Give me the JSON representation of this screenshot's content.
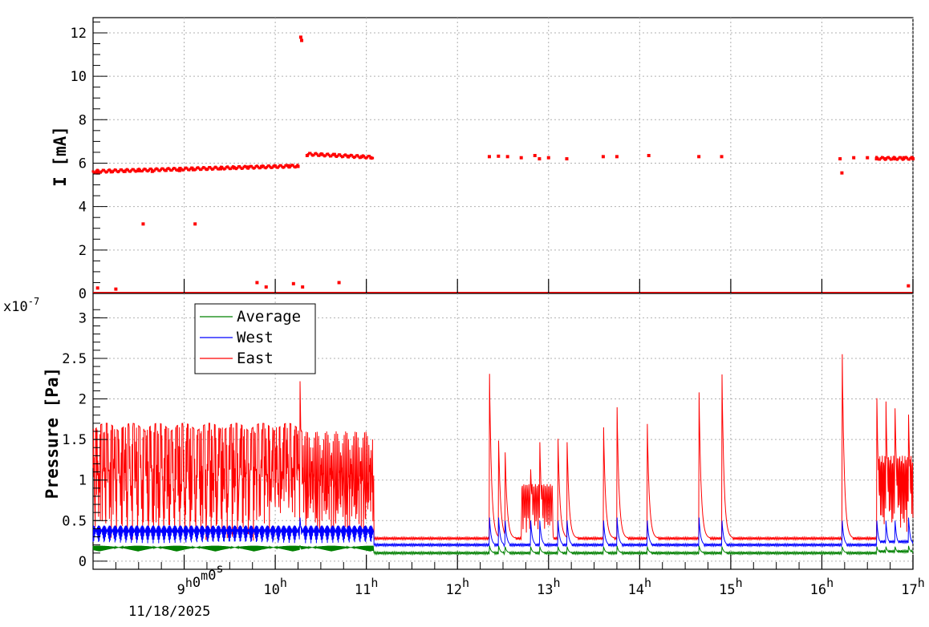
{
  "chart_data": [
    {
      "type": "scatter",
      "title": "",
      "xlabel": "",
      "ylabel": "I [mA]",
      "ylim": [
        0,
        12.7
      ],
      "yticks": [
        0,
        2,
        4,
        6,
        8,
        10,
        12
      ],
      "ytick_labels": [
        "0",
        "2",
        "4",
        "6",
        "8",
        "10",
        "12"
      ],
      "grid": true,
      "x_unit": "hour of day",
      "xlim": [
        8.0,
        17.0
      ],
      "series": [
        {
          "color": "#ff0000",
          "baseline_value": 0,
          "points": [
            [
              8.05,
              5.55
            ],
            [
              8.2,
              5.6
            ],
            [
              8.35,
              5.62
            ],
            [
              8.5,
              5.65
            ],
            [
              8.65,
              5.62
            ],
            [
              8.8,
              5.67
            ],
            [
              8.95,
              5.66
            ],
            [
              9.1,
              5.7
            ],
            [
              9.25,
              5.72
            ],
            [
              9.4,
              5.74
            ],
            [
              9.55,
              5.78
            ],
            [
              9.7,
              5.82
            ],
            [
              9.85,
              5.84
            ],
            [
              10.0,
              5.86
            ],
            [
              10.15,
              5.88
            ],
            [
              10.25,
              5.85
            ],
            [
              10.28,
              11.8
            ],
            [
              10.29,
              11.65
            ],
            [
              10.35,
              6.35
            ],
            [
              10.5,
              6.4
            ],
            [
              10.65,
              6.4
            ],
            [
              10.8,
              6.32
            ],
            [
              10.95,
              6.3
            ],
            [
              11.05,
              6.25
            ],
            [
              12.35,
              6.3
            ],
            [
              12.45,
              6.32
            ],
            [
              12.55,
              6.3
            ],
            [
              12.7,
              6.25
            ],
            [
              12.85,
              6.35
            ],
            [
              12.9,
              6.2
            ],
            [
              13.0,
              6.25
            ],
            [
              13.2,
              6.2
            ],
            [
              13.6,
              6.3
            ],
            [
              13.75,
              6.3
            ],
            [
              14.1,
              6.35
            ],
            [
              14.65,
              6.3
            ],
            [
              14.9,
              6.3
            ],
            [
              16.2,
              6.2
            ],
            [
              16.22,
              5.55
            ],
            [
              16.35,
              6.25
            ],
            [
              16.5,
              6.25
            ],
            [
              16.6,
              6.2
            ],
            [
              16.7,
              6.2
            ],
            [
              16.8,
              6.2
            ],
            [
              16.9,
              6.25
            ],
            [
              17.0,
              6.2
            ],
            [
              8.55,
              3.2
            ],
            [
              9.12,
              3.2
            ],
            [
              8.05,
              0.25
            ],
            [
              8.25,
              0.2
            ],
            [
              9.8,
              0.5
            ],
            [
              9.9,
              0.3
            ],
            [
              10.2,
              0.45
            ],
            [
              10.3,
              0.3
            ],
            [
              10.7,
              0.5
            ],
            [
              16.95,
              0.35
            ]
          ]
        }
      ]
    },
    {
      "type": "line",
      "title": "",
      "xlabel": "",
      "ylabel": "Pressure [Pa]",
      "y_multiplier": "x10",
      "y_multiplier_exp": "-7",
      "ylim": [
        -0.1,
        3.3
      ],
      "yticks": [
        0,
        0.5,
        1,
        1.5,
        2,
        2.5,
        3
      ],
      "ytick_labels": [
        "0",
        "0.5",
        "1",
        "1.5",
        "2",
        "2.5",
        "3"
      ],
      "grid": true,
      "legend_position": "top-left",
      "xlim": [
        8.0,
        17.0
      ],
      "x_tick_hours": [
        9,
        10,
        11,
        12,
        13,
        14,
        15,
        16,
        17
      ],
      "x_tick_labels": [
        {
          "base": "9",
          "sup": "h",
          "rest": "0",
          "rest_sup": "m",
          "rest2": "0",
          "rest2_sup": "s"
        },
        {
          "base": "10",
          "sup": "h"
        },
        {
          "base": "11",
          "sup": "h"
        },
        {
          "base": "12",
          "sup": "h"
        },
        {
          "base": "13",
          "sup": "h"
        },
        {
          "base": "14",
          "sup": "h"
        },
        {
          "base": "15",
          "sup": "h"
        },
        {
          "base": "16",
          "sup": "h"
        },
        {
          "base": "17",
          "sup": "h"
        }
      ],
      "date_label": "11/18/2025",
      "series": [
        {
          "name": "Average",
          "color": "#008000",
          "base": 0.15,
          "quiet_base": 0.1
        },
        {
          "name": "West",
          "color": "#0000ff",
          "base": 0.3,
          "quiet_base": 0.2
        },
        {
          "name": "East",
          "color": "#ff0000",
          "base": 0.65,
          "quiet_base": 0.28,
          "spikes": [
            [
              10.27,
              2.4
            ],
            [
              12.35,
              2.5
            ],
            [
              12.45,
              1.6
            ],
            [
              12.52,
              1.55
            ],
            [
              12.8,
              1.3
            ],
            [
              12.9,
              1.7
            ],
            [
              13.1,
              1.75
            ],
            [
              13.2,
              1.7
            ],
            [
              13.6,
              1.92
            ],
            [
              13.75,
              2.05
            ],
            [
              14.08,
              1.97
            ],
            [
              14.65,
              2.25
            ],
            [
              14.9,
              2.7
            ],
            [
              16.22,
              3.0
            ],
            [
              16.6,
              2.35
            ],
            [
              16.7,
              2.3
            ],
            [
              16.8,
              2.2
            ],
            [
              16.95,
              1.95
            ]
          ]
        }
      ]
    }
  ]
}
